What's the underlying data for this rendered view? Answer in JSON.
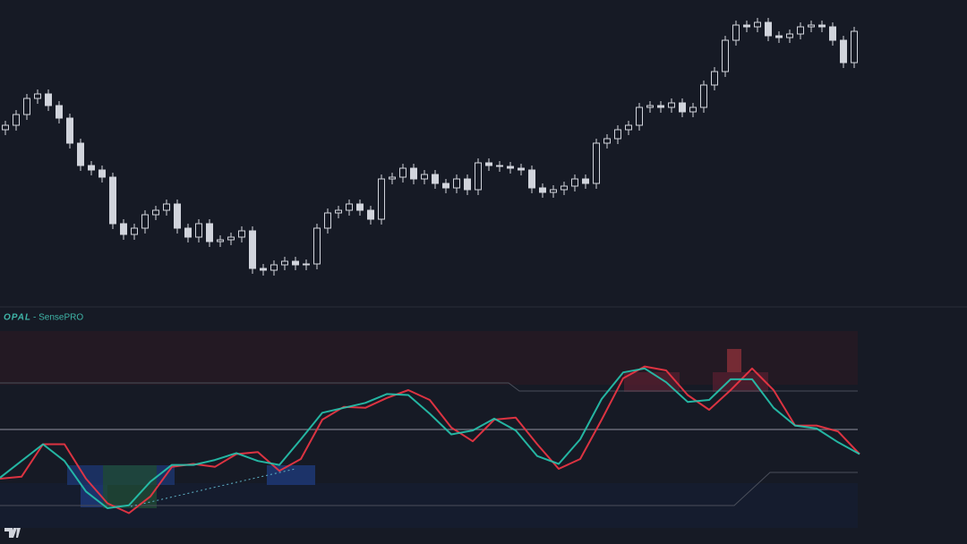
{
  "chart_data": [
    {
      "type": "candlestick",
      "up_color": "#d1d4dc",
      "down_color": "#d1d4dc",
      "ylim": [
        0,
        340
      ],
      "open": [
        195,
        200,
        212,
        230,
        235,
        222,
        208,
        180,
        155,
        150,
        142,
        90,
        78,
        85,
        100,
        105,
        112,
        85,
        75,
        90,
        70,
        72,
        75,
        82,
        40,
        38,
        44,
        48,
        44,
        45,
        85,
        102,
        105,
        112,
        105,
        95,
        140,
        142,
        152,
        140,
        145,
        135,
        130,
        140,
        128,
        158,
        155,
        154,
        152,
        150,
        130,
        125,
        128,
        132,
        140,
        135,
        180,
        185,
        195,
        200,
        220,
        222,
        220,
        225,
        215,
        220,
        245,
        260,
        295,
        312,
        310,
        315,
        300,
        298,
        302,
        310,
        312,
        310,
        295,
        270
      ],
      "high": [
        205,
        217,
        235,
        240,
        240,
        227,
        213,
        185,
        160,
        155,
        147,
        95,
        90,
        105,
        110,
        117,
        117,
        90,
        95,
        95,
        77,
        80,
        87,
        87,
        45,
        49,
        53,
        53,
        50,
        90,
        107,
        110,
        117,
        117,
        110,
        145,
        147,
        157,
        157,
        150,
        150,
        140,
        145,
        145,
        163,
        163,
        160,
        159,
        157,
        155,
        135,
        133,
        137,
        145,
        145,
        185,
        190,
        200,
        205,
        225,
        227,
        227,
        230,
        230,
        225,
        250,
        265,
        300,
        317,
        317,
        320,
        320,
        305,
        307,
        315,
        317,
        317,
        315,
        300,
        310
      ],
      "low": [
        189,
        194,
        206,
        224,
        216,
        202,
        174,
        149,
        144,
        136,
        84,
        72,
        72,
        79,
        94,
        99,
        79,
        69,
        69,
        64,
        64,
        66,
        69,
        34,
        32,
        32,
        38,
        38,
        38,
        39,
        79,
        96,
        99,
        99,
        89,
        89,
        134,
        136,
        134,
        134,
        129,
        124,
        124,
        122,
        122,
        149,
        148,
        146,
        144,
        124,
        119,
        119,
        122,
        126,
        129,
        129,
        174,
        179,
        189,
        194,
        214,
        214,
        214,
        209,
        209,
        214,
        239,
        254,
        289,
        304,
        304,
        294,
        292,
        292,
        296,
        304,
        304,
        289,
        264,
        264
      ],
      "close": [
        200,
        212,
        230,
        235,
        222,
        208,
        180,
        155,
        150,
        142,
        90,
        78,
        85,
        100,
        105,
        112,
        85,
        75,
        90,
        70,
        72,
        75,
        82,
        40,
        38,
        44,
        48,
        44,
        45,
        85,
        102,
        105,
        112,
        105,
        95,
        140,
        142,
        152,
        140,
        145,
        135,
        130,
        140,
        128,
        158,
        155,
        154,
        152,
        150,
        130,
        125,
        128,
        132,
        140,
        135,
        180,
        185,
        195,
        200,
        220,
        222,
        220,
        225,
        215,
        220,
        245,
        260,
        295,
        312,
        310,
        315,
        300,
        298,
        302,
        310,
        312,
        310,
        295,
        270,
        305
      ]
    },
    {
      "type": "line",
      "title": "OPAL",
      "subtitle": "- SensePRO",
      "xlim": [
        0,
        960
      ],
      "ylim": [
        -100,
        100
      ],
      "x": [
        0,
        24,
        48,
        72,
        96,
        120,
        144,
        168,
        192,
        216,
        240,
        264,
        288,
        312,
        336,
        360,
        384,
        408,
        432,
        456,
        480,
        504,
        528,
        552,
        576,
        600,
        624,
        648,
        672,
        696,
        720,
        744,
        768,
        792,
        816,
        840,
        864,
        888,
        912,
        936,
        960
      ],
      "series": [
        {
          "color": "#f23645",
          "values": [
            -50,
            -48,
            -15,
            -15,
            -50,
            -75,
            -85,
            -68,
            -38,
            -35,
            -38,
            -25,
            -23,
            -42,
            -30,
            10,
            23,
            22,
            32,
            40,
            30,
            2,
            -12,
            10,
            12,
            -15,
            -40,
            -30,
            10,
            52,
            64,
            60,
            35,
            20,
            40,
            62,
            40,
            4,
            4,
            -2,
            -25
          ]
        },
        {
          "color": "#26c6b0",
          "values": [
            -49,
            -32,
            -15,
            -32,
            -63,
            -80,
            -77,
            -53,
            -36,
            -36,
            -31,
            -24,
            -32,
            -36,
            -10,
            17,
            22,
            27,
            36,
            35,
            16,
            -5,
            -1,
            11,
            -1,
            -27,
            -35,
            -10,
            31,
            58,
            62,
            48,
            28,
            30,
            51,
            51,
            22,
            4,
            1,
            -13,
            -25
          ]
        }
      ]
    }
  ]
}
